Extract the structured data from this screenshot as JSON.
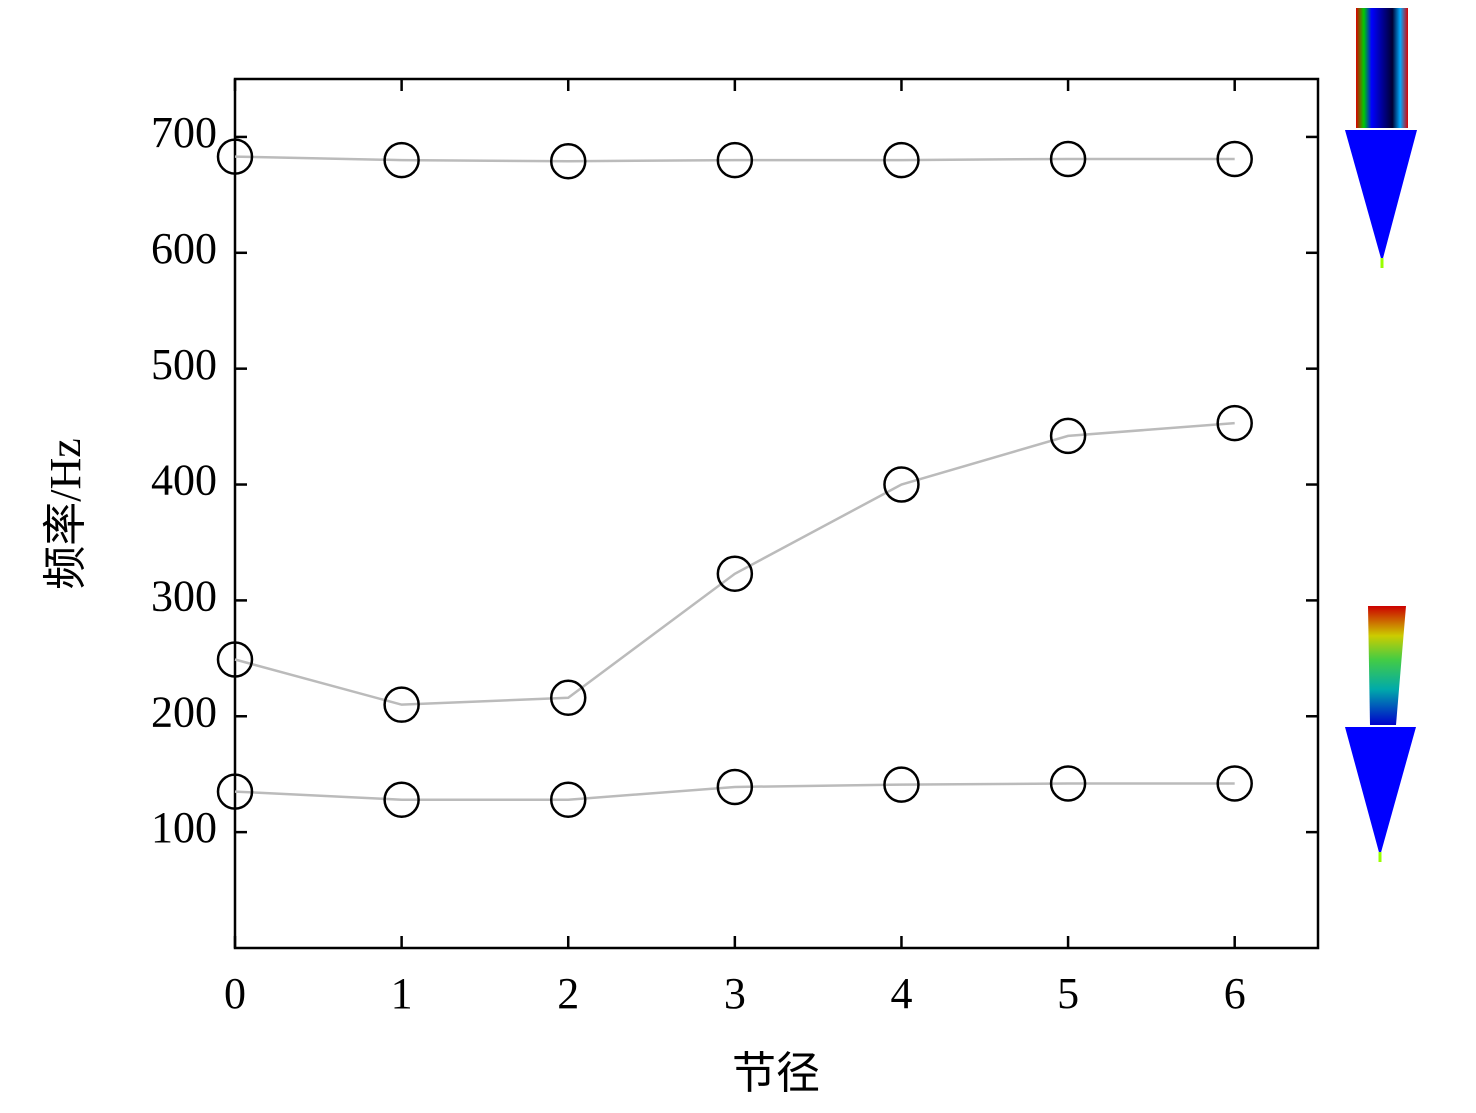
{
  "chart_data": {
    "type": "line",
    "x_label": "节径",
    "y_label": "频率/Hz",
    "x": [
      0,
      1,
      2,
      3,
      4,
      5,
      6
    ],
    "series": [
      {
        "color": "#bbbbbb",
        "values": [
          683,
          680,
          679,
          680,
          680,
          681,
          681
        ]
      },
      {
        "color": "#bbbbbb",
        "values": [
          249,
          210,
          216,
          323,
          400,
          442,
          453
        ]
      },
      {
        "color": "#bbbbbb",
        "values": [
          135,
          128,
          128,
          139,
          141,
          142,
          142
        ]
      }
    ],
    "marker_color": "#000000",
    "xlim": [
      0,
      6.5
    ],
    "xticks": [
      0,
      1,
      2,
      3,
      4,
      5,
      6
    ],
    "ylim": [
      0,
      750
    ],
    "yticks": [
      100,
      200,
      300,
      400,
      500,
      600,
      700
    ]
  }
}
